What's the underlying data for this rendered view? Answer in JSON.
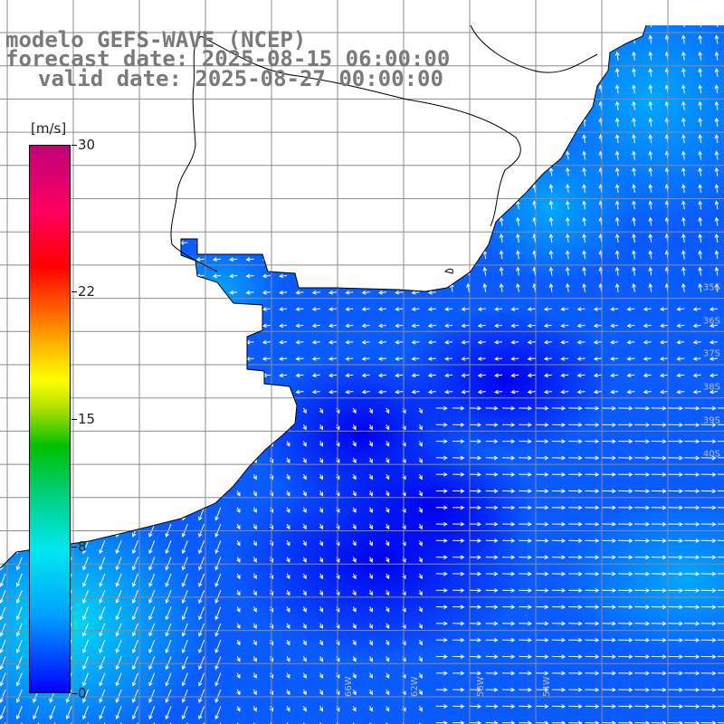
{
  "title": {
    "line1": "modelo GEFS-WAVE (NCEP)",
    "line2": "forecast date: 2025-08-15 06:00:00",
    "line3": "valid date: 2025-08-27 00:00:00"
  },
  "colorbar": {
    "units": "[m/s]",
    "min": 0,
    "max": 30,
    "ticks": [
      {
        "value": 30,
        "label": "30"
      },
      {
        "value": 22,
        "label": "22"
      },
      {
        "value": 15,
        "label": "15"
      },
      {
        "value": 8,
        "label": "8"
      },
      {
        "value": 0,
        "label": "0"
      }
    ]
  },
  "map": {
    "variable": "wind speed and direction",
    "ocean_colormap": [
      "#0000ff",
      "#00a0ff",
      "#00e8f0"
    ],
    "land_color": "#ffffff",
    "grid_color": "#8c8c8c",
    "lat_labels": [
      "35S",
      "36S",
      "37S",
      "38S",
      "39S",
      "40S"
    ],
    "lon_labels": [
      "66W",
      "62W",
      "58W",
      "54W"
    ]
  }
}
